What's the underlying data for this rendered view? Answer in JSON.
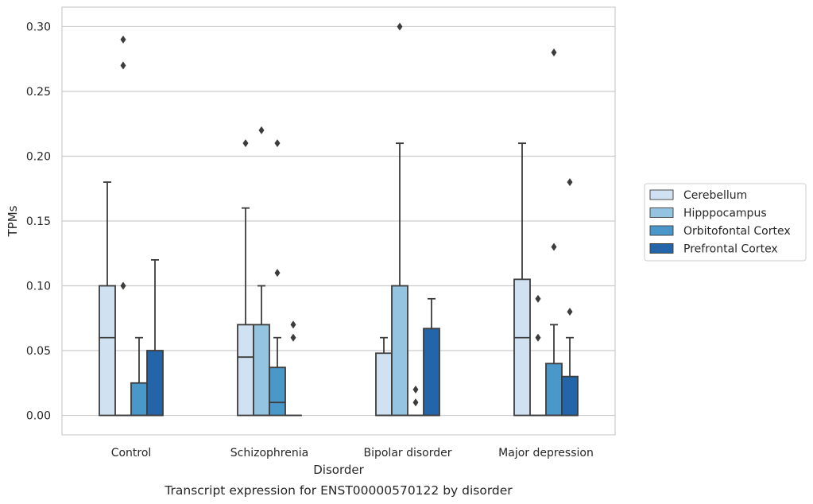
{
  "caption": "Transcript expression for ENST00000570122 by disorder",
  "chart_data": {
    "type": "box",
    "xlabel": "Disorder",
    "ylabel": "TPMs",
    "ylim": [
      -0.015,
      0.315
    ],
    "yticks": [
      "0.00",
      "0.05",
      "0.10",
      "0.15",
      "0.20",
      "0.25",
      "0.30"
    ],
    "grid": "horizontal",
    "legend_position": "right",
    "categories": [
      "Control",
      "Schizophrenia",
      "Bipolar disorder",
      "Major depression"
    ],
    "series": [
      {
        "name": "Cerebellum",
        "color": "#d0e1f2",
        "boxes": [
          {
            "q1": 0.0,
            "median": 0.06,
            "q3": 0.1,
            "whisker_low": 0.0,
            "whisker_high": 0.18,
            "outliers": []
          },
          {
            "q1": 0.0,
            "median": 0.045,
            "q3": 0.07,
            "whisker_low": 0.0,
            "whisker_high": 0.16,
            "outliers": [
              0.21
            ]
          },
          {
            "q1": 0.0,
            "median": 0.0,
            "q3": 0.048,
            "whisker_low": 0.0,
            "whisker_high": 0.06,
            "outliers": []
          },
          {
            "q1": 0.0,
            "median": 0.06,
            "q3": 0.105,
            "whisker_low": 0.0,
            "whisker_high": 0.21,
            "outliers": []
          }
        ]
      },
      {
        "name": "Hipppocampus",
        "color": "#94c4df",
        "boxes": [
          {
            "q1": 0.0,
            "median": 0.0,
            "q3": 0.0,
            "whisker_low": 0.0,
            "whisker_high": 0.0,
            "outliers": [
              0.1,
              0.27,
              0.29
            ]
          },
          {
            "q1": 0.0,
            "median": 0.0,
            "q3": 0.07,
            "whisker_low": 0.0,
            "whisker_high": 0.1,
            "outliers": [
              0.22
            ]
          },
          {
            "q1": 0.0,
            "median": 0.0,
            "q3": 0.1,
            "whisker_low": 0.0,
            "whisker_high": 0.21,
            "outliers": [
              0.3
            ]
          },
          {
            "q1": 0.0,
            "median": 0.0,
            "q3": 0.0,
            "whisker_low": 0.0,
            "whisker_high": 0.0,
            "outliers": [
              0.06,
              0.09
            ]
          }
        ]
      },
      {
        "name": "Orbitofontal Cortex",
        "color": "#4a98c9",
        "boxes": [
          {
            "q1": 0.0,
            "median": 0.0,
            "q3": 0.025,
            "whisker_low": 0.0,
            "whisker_high": 0.06,
            "outliers": []
          },
          {
            "q1": 0.0,
            "median": 0.01,
            "q3": 0.037,
            "whisker_low": 0.0,
            "whisker_high": 0.06,
            "outliers": [
              0.11,
              0.21
            ]
          },
          {
            "q1": 0.0,
            "median": 0.0,
            "q3": 0.0,
            "whisker_low": 0.0,
            "whisker_high": 0.0,
            "outliers": [
              0.01,
              0.02
            ]
          },
          {
            "q1": 0.0,
            "median": 0.0,
            "q3": 0.04,
            "whisker_low": 0.0,
            "whisker_high": 0.07,
            "outliers": [
              0.13,
              0.28
            ]
          }
        ]
      },
      {
        "name": "Prefrontal Cortex",
        "color": "#2464a8",
        "boxes": [
          {
            "q1": 0.0,
            "median": 0.0,
            "q3": 0.05,
            "whisker_low": 0.0,
            "whisker_high": 0.12,
            "outliers": []
          },
          {
            "q1": 0.0,
            "median": 0.0,
            "q3": 0.0,
            "whisker_low": 0.0,
            "whisker_high": 0.0,
            "outliers": [
              0.06,
              0.07
            ]
          },
          {
            "q1": 0.0,
            "median": 0.0,
            "q3": 0.067,
            "whisker_low": 0.0,
            "whisker_high": 0.09,
            "outliers": []
          },
          {
            "q1": 0.0,
            "median": 0.0,
            "q3": 0.03,
            "whisker_low": 0.0,
            "whisker_high": 0.06,
            "outliers": [
              0.08,
              0.18
            ]
          }
        ]
      }
    ]
  }
}
